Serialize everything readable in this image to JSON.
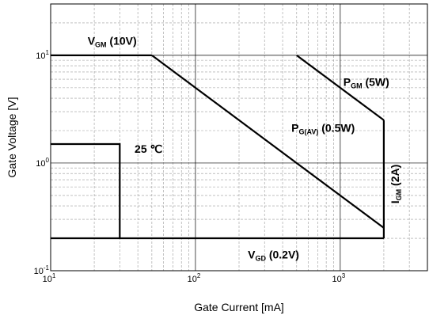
{
  "chart_data": {
    "type": "line",
    "title": "",
    "xlabel": "Gate Current [mA]",
    "ylabel": "Gate Voltage [V]",
    "x_scale": "log",
    "y_scale": "log",
    "xlim": [
      10,
      4000
    ],
    "ylim": [
      0.1,
      30
    ],
    "grid": true,
    "x_ticks": [
      {
        "value": 10,
        "base": "10",
        "exp": "1"
      },
      {
        "value": 100,
        "base": "10",
        "exp": "2"
      },
      {
        "value": 1000,
        "base": "10",
        "exp": "3"
      }
    ],
    "y_ticks": [
      {
        "value": 0.1,
        "base": "10",
        "exp": "-1"
      },
      {
        "value": 1,
        "base": "10",
        "exp": "0"
      },
      {
        "value": 10,
        "base": "10",
        "exp": "1"
      }
    ],
    "series": [
      {
        "x": [
          10,
          50
        ],
        "y": [
          10,
          10
        ]
      },
      {
        "x": [
          50,
          2000
        ],
        "y": [
          10,
          0.25
        ]
      },
      {
        "x": [
          500,
          2000
        ],
        "y": [
          10,
          2.5
        ]
      },
      {
        "x": [
          2000,
          2000
        ],
        "y": [
          2.5,
          0.2
        ]
      },
      {
        "x": [
          10,
          2000
        ],
        "y": [
          0.2,
          0.2
        ]
      },
      {
        "x": [
          10,
          30,
          30
        ],
        "y": [
          1.5,
          1.5,
          0.2
        ]
      }
    ],
    "annotations": [
      {
        "main": "V",
        "sub": "GM",
        "tail": " (10V)",
        "x": 18,
        "y": 12.5
      },
      {
        "main": "P",
        "sub": "GM",
        "tail": " (5W)",
        "x": 1050,
        "y": 5.2
      },
      {
        "main": "P",
        "sub": "G(AV)",
        "tail": " (0.5W)",
        "x": 460,
        "y": 1.95
      },
      {
        "main": "25 ℃",
        "sub": "",
        "tail": "",
        "x": 38,
        "y": 1.25
      },
      {
        "main": "V",
        "sub": "GD",
        "tail": " (0.2V)",
        "x": 230,
        "y": 0.13
      },
      {
        "main": "I",
        "sub": "GM",
        "tail": " (2A)",
        "x": 2550,
        "y": 0.42,
        "rotate": -90
      }
    ]
  }
}
